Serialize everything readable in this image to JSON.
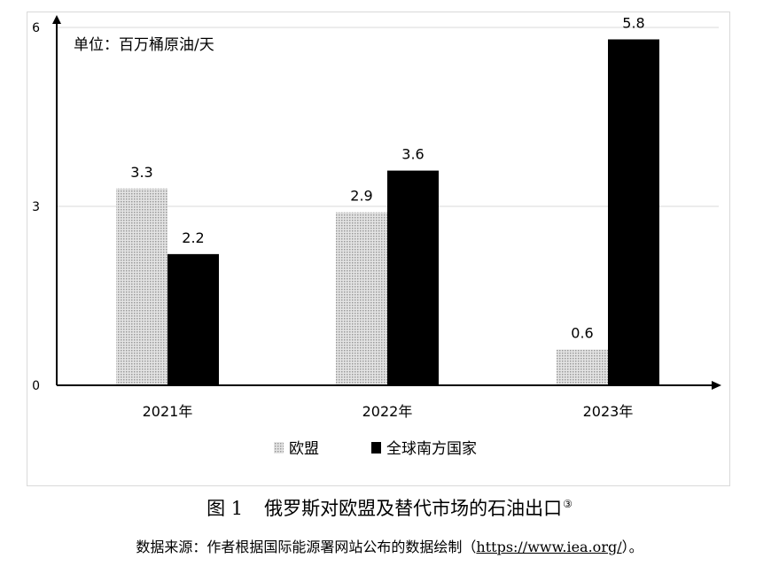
{
  "chart_data": {
    "type": "bar",
    "unit_note": "单位：百万桶原油/天",
    "categories": [
      "2021年",
      "2022年",
      "2023年"
    ],
    "series": [
      {
        "name": "欧盟",
        "values": [
          3.3,
          2.9,
          0.6
        ],
        "color": "#c8c8c8",
        "pattern": "dotted"
      },
      {
        "name": "全球南方国家",
        "values": [
          2.2,
          3.6,
          5.8
        ],
        "color": "#000000"
      }
    ],
    "data_labels": [
      [
        "3.3",
        "2.9",
        "0.6"
      ],
      [
        "2.2",
        "3.6",
        "5.8"
      ]
    ],
    "ylim": [
      0,
      6
    ],
    "yticks": [
      0,
      3,
      6
    ],
    "grid": true,
    "legend_position": "bottom"
  },
  "caption": {
    "figure_no": "图 1",
    "title": "俄罗斯对欧盟及替代市场的石油出口",
    "footnote_mark": "③"
  },
  "source": {
    "prefix": "数据来源：作者根据国际能源署网站公布的数据绘制（",
    "url": "https://www.iea.org/",
    "suffix": "）。"
  }
}
